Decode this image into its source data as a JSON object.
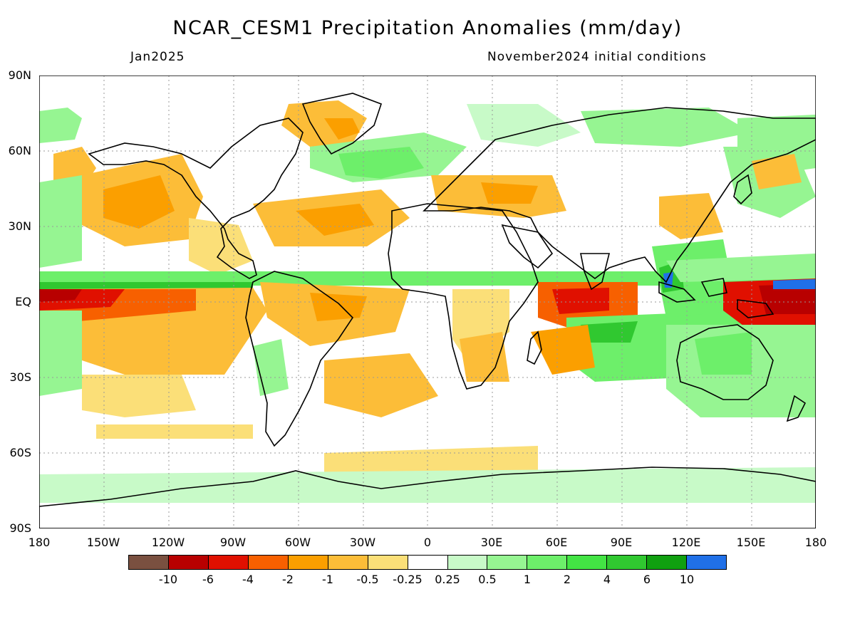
{
  "title": "NCAR_CESM1 Precipitation Anomalies (mm/day)",
  "valid_month": "Jan2025",
  "init_conditions": "November2024 initial conditions",
  "y_ticks": [
    "90N",
    "60N",
    "30N",
    "EQ",
    "30S",
    "60S",
    "90S"
  ],
  "x_ticks": [
    "180",
    "150W",
    "120W",
    "90W",
    "60W",
    "30W",
    "0",
    "30E",
    "60E",
    "90E",
    "120E",
    "150E",
    "180"
  ],
  "colorbar": {
    "colors": [
      "#7a5040",
      "#b80000",
      "#e01000",
      "#f76000",
      "#fb9f00",
      "#fcbd38",
      "#fbdf78",
      "#ffffff",
      "#c8fac8",
      "#96f592",
      "#6def6a",
      "#43e444",
      "#30c830",
      "#10a010",
      "#2070e8"
    ],
    "labels": [
      "-10",
      "-6",
      "-4",
      "-2",
      "-1",
      "-0.5",
      "-0.25",
      "0.25",
      "0.5",
      "1",
      "2",
      "4",
      "6",
      "10"
    ]
  }
}
